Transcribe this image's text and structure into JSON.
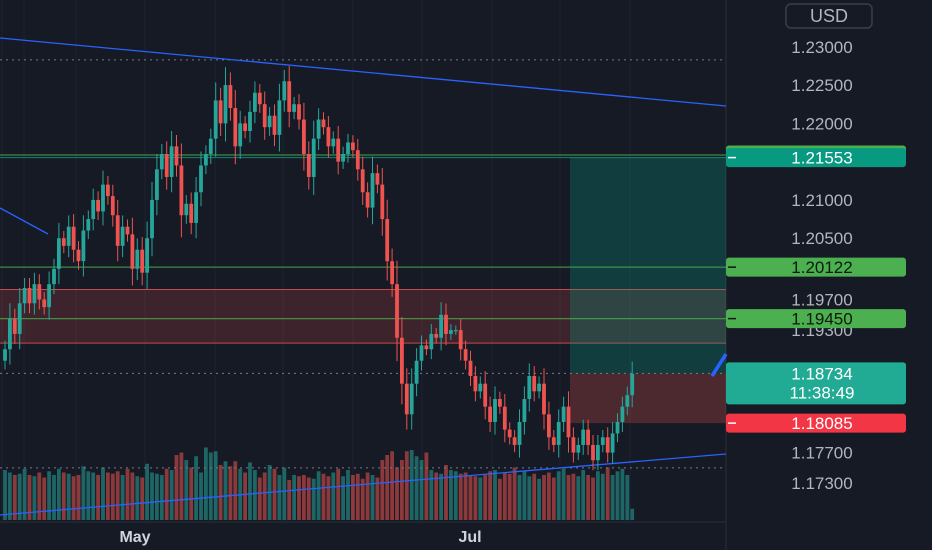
{
  "header": {
    "currency": "USD"
  },
  "axes": {
    "y_ticks": [
      "1.23000",
      "1.22500",
      "1.22000",
      "1.21000",
      "1.20500",
      "1.19700",
      "1.19300",
      "1.17700",
      "1.17300"
    ],
    "y_tick_values": [
      1.23,
      1.225,
      1.22,
      1.21,
      1.205,
      1.197,
      1.193,
      1.177,
      1.173
    ],
    "x_labels": [
      "May",
      "Jul"
    ]
  },
  "price_levels": [
    {
      "label": "1.21587",
      "value": 1.21587,
      "bg": "#4caf50",
      "fg": "#0c1a0c",
      "line": "#4caf50"
    },
    {
      "label": "1.21553",
      "value": 1.21553,
      "bg": "#089981",
      "fg": "#ffffff",
      "line": "#089981"
    },
    {
      "label": "1.20122",
      "value": 1.20122,
      "bg": "#4caf50",
      "fg": "#0c1a0c",
      "line": "#4caf50"
    },
    {
      "label": "1.19450",
      "value": 1.1945,
      "bg": "#4caf50",
      "fg": "#0c1a0c",
      "line": "#4caf50"
    },
    {
      "label": "1.18752",
      "value": 1.18752,
      "bg": "#787b86",
      "fg": "#ffffff",
      "line": "#787b86"
    },
    {
      "label": "1.18085",
      "value": 1.18085,
      "bg": "#f23645",
      "fg": "#ffffff",
      "line": "#f23645"
    }
  ],
  "last_price": {
    "label": "1.18734",
    "countdown": "11:38:49",
    "value": 1.18734,
    "bg": "#22ab94"
  },
  "colors": {
    "up": "#26a69a",
    "down": "#ef5350",
    "trendline": "#2962ff",
    "zone_red": "#ef5350",
    "zone_teal": "#089981"
  },
  "chart_data": {
    "type": "candlestick",
    "y_range": [
      1.1712,
      1.2335
    ],
    "resistance_zone": [
      1.1983,
      1.1913
    ],
    "position_target": [
      1.21553,
      1.18734
    ],
    "position_stop": [
      1.18734,
      1.18085
    ],
    "closes": [
      1.1905,
      1.1945,
      1.1925,
      1.1965,
      1.1985,
      1.1965,
      1.199,
      1.197,
      1.196,
      1.199,
      1.201,
      1.205,
      1.204,
      1.2065,
      1.2035,
      1.202,
      1.206,
      1.2075,
      1.21,
      1.2085,
      1.212,
      1.2105,
      1.208,
      1.204,
      1.2065,
      1.2055,
      1.201,
      1.2035,
      1.2005,
      1.205,
      1.21,
      1.214,
      1.216,
      1.213,
      1.217,
      1.2145,
      1.208,
      1.2095,
      1.207,
      1.211,
      1.2145,
      1.216,
      1.218,
      1.223,
      1.22,
      1.225,
      1.222,
      1.217,
      1.22,
      1.219,
      1.2215,
      1.224,
      1.2225,
      1.2195,
      1.221,
      1.2185,
      1.223,
      1.2255,
      1.2215,
      1.2225,
      1.2205,
      1.216,
      1.213,
      1.218,
      1.2205,
      1.2195,
      1.217,
      1.218,
      1.215,
      1.216,
      1.2175,
      1.2165,
      1.214,
      1.211,
      1.209,
      1.2135,
      1.212,
      1.2075,
      1.202,
      1.199,
      1.192,
      1.186,
      1.182,
      1.186,
      1.189,
      1.191,
      1.1905,
      1.1925,
      1.192,
      1.195,
      1.1925,
      1.193,
      1.193,
      1.1905,
      1.189,
      1.187,
      1.185,
      1.186,
      1.183,
      1.181,
      1.184,
      1.183,
      1.18,
      1.179,
      1.178,
      1.181,
      1.184,
      1.187,
      1.185,
      1.186,
      1.182,
      1.179,
      1.178,
      1.181,
      1.183,
      1.179,
      1.177,
      1.178,
      1.18,
      1.178,
      1.176,
      1.178,
      1.179,
      1.177,
      1.1795,
      1.181,
      1.183,
      1.1845,
      1.1873
    ],
    "volumes": [
      40,
      38,
      36,
      37,
      41,
      36,
      35,
      38,
      34,
      39,
      36,
      41,
      38,
      37,
      35,
      36,
      43,
      39,
      38,
      36,
      42,
      38,
      37,
      39,
      36,
      41,
      38,
      35,
      34,
      45,
      38,
      37,
      36,
      41,
      40,
      52,
      54,
      48,
      42,
      51,
      38,
      58,
      54,
      55,
      44,
      47,
      43,
      47,
      41,
      38,
      46,
      40,
      34,
      38,
      44,
      41,
      36,
      42,
      32,
      36,
      35,
      36,
      34,
      33,
      39,
      37,
      35,
      38,
      41,
      35,
      40,
      36,
      37,
      33,
      38,
      36,
      34,
      48,
      52,
      55,
      42,
      48,
      55,
      56,
      51,
      48,
      54,
      40,
      38,
      37,
      44,
      40,
      39,
      37,
      38,
      36,
      35,
      34,
      36,
      39,
      40,
      33,
      38,
      37,
      42,
      36,
      39,
      35,
      37,
      33,
      36,
      38,
      34,
      39,
      41,
      36,
      37,
      35,
      40,
      36,
      34,
      39,
      37,
      42,
      36,
      39,
      41,
      36,
      9
    ]
  }
}
